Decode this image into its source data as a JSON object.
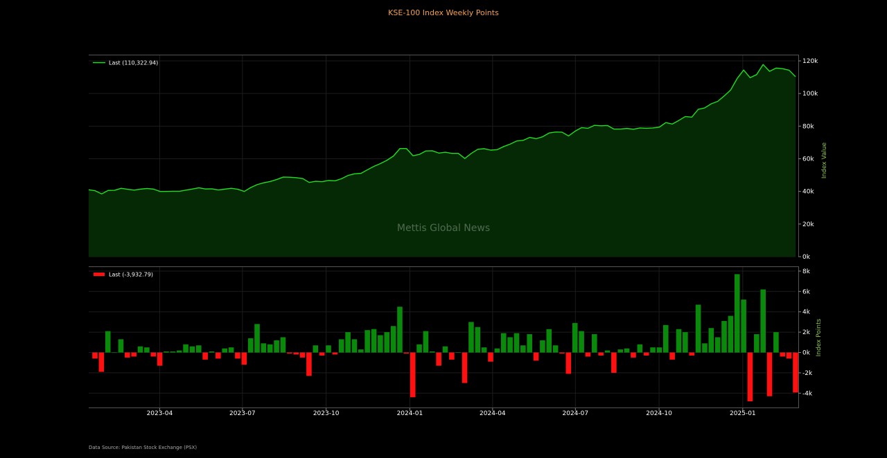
{
  "title": "KSE-100 Index Weekly Points",
  "watermark": "Mettis Global News",
  "source": "Data Source: Pakistan Stock Exchange (PSX)",
  "colors": {
    "background": "#000000",
    "line": "#22dd22",
    "area": "#052805",
    "positive_bar": "#0a8a0a",
    "negative_bar": "#ff1010",
    "grid": "#1c1c1c",
    "title": "#f0a050",
    "axis_label": "#8bc34a"
  },
  "chart_data": [
    {
      "type": "area",
      "ylabel": "Index Value",
      "legend": "Last (110,322.94)",
      "legend_placement": "top-left",
      "grid": true,
      "ylim": [
        0,
        120000
      ],
      "yticks": [
        0,
        20000,
        40000,
        60000,
        80000,
        100000,
        120000
      ],
      "ytick_labels": [
        "0k",
        "20k",
        "40k",
        "60k",
        "80k",
        "100k",
        "120k"
      ],
      "x_start": "2023-01-13",
      "x_end": "2025-02-28",
      "values": [
        41000,
        40400,
        38500,
        40600,
        40700,
        41900,
        41300,
        40800,
        41400,
        41800,
        41400,
        40000,
        40000,
        40100,
        40100,
        40800,
        41500,
        42200,
        41500,
        41600,
        40900,
        41400,
        41900,
        41300,
        40000,
        42400,
        44200,
        45300,
        46100,
        47300,
        48800,
        48700,
        48400,
        47900,
        45500,
        46200,
        46000,
        46700,
        46500,
        47800,
        49800,
        50800,
        51100,
        53300,
        55400,
        57100,
        59100,
        61700,
        66300,
        66300,
        61900,
        62700,
        64800,
        64900,
        63500,
        64000,
        63300,
        63300,
        60200,
        63300,
        65800,
        66200,
        65300,
        65600,
        67500,
        69000,
        70900,
        71300,
        73100,
        72300,
        73500,
        75800,
        76400,
        76300,
        74000,
        76900,
        79100,
        78700,
        80500,
        80200,
        80400,
        78200,
        78200,
        78600,
        78100,
        78900,
        78700,
        78900,
        79400,
        82200,
        81300,
        83500,
        85900,
        85500,
        90300,
        91200,
        93700,
        95200,
        98500,
        102200,
        109200,
        114400,
        109700,
        111600,
        117800,
        113600,
        115600,
        115200,
        114300,
        110323
      ]
    },
    {
      "type": "bar",
      "ylabel": "Index Points",
      "legend": "Last (-3,932.79)",
      "legend_placement": "top-left",
      "grid": true,
      "ylim": [
        -5500,
        8200
      ],
      "yticks": [
        -4000,
        -2000,
        0,
        2000,
        4000,
        6000,
        8000
      ],
      "ytick_labels": [
        "-4k",
        "-2k",
        "0k",
        "2k",
        "4k",
        "6k",
        "8k"
      ],
      "x_start": "2023-01-13",
      "x_end": "2025-02-28",
      "values": [
        -600,
        -1900,
        2100,
        0,
        1300,
        -500,
        -400,
        600,
        500,
        -400,
        -1300,
        100,
        100,
        200,
        800,
        600,
        700,
        -700,
        100,
        -600,
        400,
        500,
        -600,
        -1200,
        1400,
        2800,
        900,
        800,
        1200,
        1500,
        -100,
        -200,
        -500,
        -2300,
        700,
        -300,
        700,
        -200,
        1300,
        2000,
        1300,
        300,
        2200,
        2300,
        1700,
        2000,
        2600,
        4500,
        -100,
        -4400,
        800,
        2100,
        100,
        -1300,
        600,
        -700,
        0,
        -3000,
        3000,
        2500,
        500,
        -900,
        400,
        1900,
        1500,
        1900,
        700,
        1800,
        -800,
        1200,
        2300,
        700,
        -100,
        -2100,
        2900,
        2100,
        -400,
        1800,
        -300,
        200,
        -2000,
        300,
        400,
        -500,
        800,
        -300,
        500,
        500,
        2700,
        -700,
        2300,
        2000,
        -300,
        4700,
        900,
        2400,
        1500,
        3100,
        3600,
        7700,
        5200,
        -4800,
        1800,
        6200,
        -4300,
        2000,
        -400,
        -600,
        -3933
      ]
    }
  ],
  "x_axis": {
    "ticks": [
      {
        "date": "2023-04-01",
        "label": "2023-04"
      },
      {
        "date": "2023-07-01",
        "label": "2023-07"
      },
      {
        "date": "2023-10-01",
        "label": "2023-10"
      },
      {
        "date": "2024-01-01",
        "label": "2024-01"
      },
      {
        "date": "2024-04-01",
        "label": "2024-04"
      },
      {
        "date": "2024-07-01",
        "label": "2024-07"
      },
      {
        "date": "2024-10-01",
        "label": "2024-10"
      },
      {
        "date": "2025-01-01",
        "label": "2025-01"
      }
    ]
  }
}
